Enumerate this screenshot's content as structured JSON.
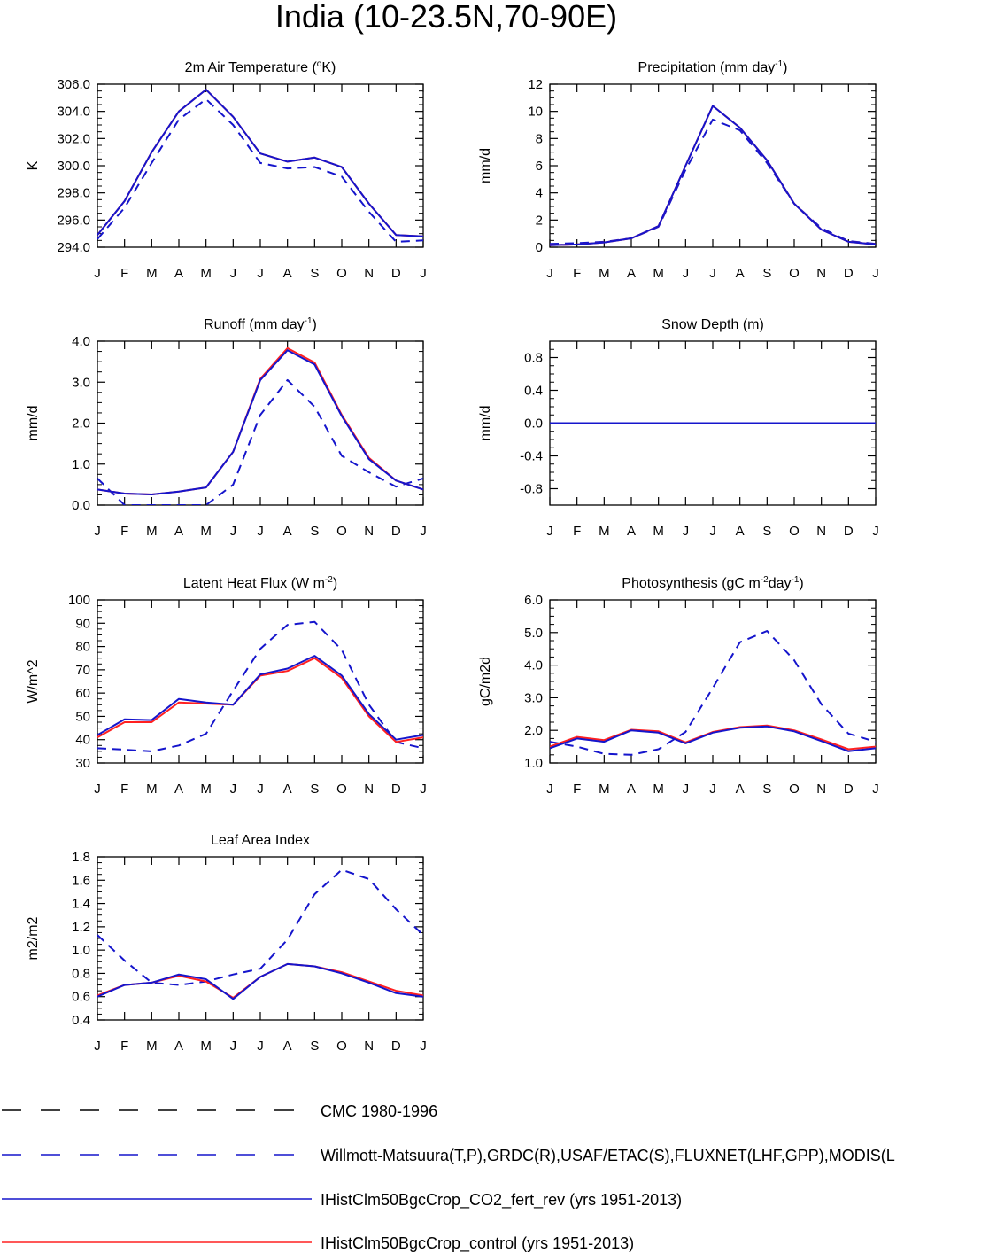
{
  "figure": {
    "title": "India (10-23.5N,70-90E)"
  },
  "month_labels": [
    "J",
    "F",
    "M",
    "A",
    "M",
    "J",
    "J",
    "A",
    "S",
    "O",
    "N",
    "D",
    "J"
  ],
  "colors": {
    "blue": "#1515cc",
    "red": "#ff2020",
    "black": "#000000"
  },
  "chart_data": [
    {
      "type": "line",
      "title_main": "2m Air Temperature (",
      "title_sup": "o",
      "title_end": "K)",
      "ylabel": "K",
      "ylim": [
        294,
        306
      ],
      "yticks": [
        294,
        296,
        298,
        300,
        302,
        304,
        306
      ],
      "ytick_labels": [
        "294.0",
        "296.0",
        "298.0",
        "300.0",
        "302.0",
        "304.0",
        "306.0"
      ],
      "x": [
        "J",
        "F",
        "M",
        "A",
        "M",
        "J",
        "J",
        "A",
        "S",
        "O",
        "N",
        "D",
        "J"
      ],
      "series": [
        {
          "style": "obs",
          "values": [
            294.6,
            296.9,
            300.2,
            303.4,
            304.9,
            303.0,
            300.2,
            299.8,
            299.9,
            299.2,
            296.6,
            294.4,
            294.5
          ]
        },
        {
          "style": "red",
          "values": [
            294.9,
            297.4,
            301.0,
            304.0,
            305.6,
            303.6,
            300.9,
            300.3,
            300.6,
            299.9,
            297.2,
            294.9,
            294.8
          ]
        },
        {
          "style": "blue",
          "values": [
            294.9,
            297.4,
            301.0,
            304.0,
            305.6,
            303.6,
            300.9,
            300.3,
            300.6,
            299.9,
            297.2,
            294.9,
            294.8
          ]
        }
      ]
    },
    {
      "type": "line",
      "title_main": "Precipitation (mm day",
      "title_sup": "-1",
      "title_end": ")",
      "ylabel": "mm/d",
      "ylim": [
        0,
        12
      ],
      "yticks": [
        0,
        2,
        4,
        6,
        8,
        10,
        12
      ],
      "ytick_labels": [
        "0",
        "2",
        "4",
        "6",
        "8",
        "10",
        "12"
      ],
      "x": [
        "J",
        "F",
        "M",
        "A",
        "M",
        "J",
        "J",
        "A",
        "S",
        "O",
        "N",
        "D",
        "J"
      ],
      "series": [
        {
          "style": "obs",
          "values": [
            0.25,
            0.3,
            0.4,
            0.65,
            1.5,
            5.7,
            9.4,
            8.6,
            6.2,
            3.2,
            1.4,
            0.45,
            0.25
          ]
        },
        {
          "style": "red",
          "values": [
            0.15,
            0.2,
            0.35,
            0.65,
            1.55,
            6.0,
            10.4,
            8.8,
            6.4,
            3.2,
            1.3,
            0.4,
            0.2
          ]
        },
        {
          "style": "blue",
          "values": [
            0.15,
            0.2,
            0.35,
            0.65,
            1.55,
            6.0,
            10.4,
            8.8,
            6.4,
            3.2,
            1.3,
            0.4,
            0.2
          ]
        }
      ]
    },
    {
      "type": "line",
      "title_main": "Runoff (mm day",
      "title_sup": "-1",
      "title_end": ")",
      "ylabel": "mm/d",
      "ylim": [
        0,
        4
      ],
      "yticks": [
        0,
        1,
        2,
        3,
        4
      ],
      "ytick_labels": [
        "0.0",
        "1.0",
        "2.0",
        "3.0",
        "4.0"
      ],
      "x": [
        "J",
        "F",
        "M",
        "A",
        "M",
        "J",
        "J",
        "A",
        "S",
        "O",
        "N",
        "D",
        "J"
      ],
      "series": [
        {
          "style": "obs",
          "values": [
            0.65,
            0.0,
            0.0,
            0.0,
            0.0,
            0.5,
            2.2,
            3.05,
            2.4,
            1.2,
            0.8,
            0.45,
            0.65
          ]
        },
        {
          "style": "red",
          "values": [
            0.38,
            0.28,
            0.26,
            0.33,
            0.43,
            1.3,
            3.08,
            3.83,
            3.48,
            2.2,
            1.15,
            0.6,
            0.38
          ]
        },
        {
          "style": "blue",
          "values": [
            0.38,
            0.28,
            0.26,
            0.33,
            0.43,
            1.3,
            3.05,
            3.78,
            3.43,
            2.17,
            1.12,
            0.6,
            0.38
          ]
        }
      ]
    },
    {
      "type": "line",
      "title_main": "Snow Depth (m)",
      "title_sup": "",
      "title_end": "",
      "ylabel": "mm/d",
      "ylim": [
        -1.0,
        1.0
      ],
      "yticks": [
        -0.8,
        -0.4,
        0.0,
        0.4,
        0.8
      ],
      "ytick_labels": [
        "-0.8",
        "-0.4",
        "0.0",
        "0.4",
        "0.8"
      ],
      "x": [
        "J",
        "F",
        "M",
        "A",
        "M",
        "J",
        "J",
        "A",
        "S",
        "O",
        "N",
        "D",
        "J"
      ],
      "series": [
        {
          "style": "obs",
          "values": [
            0,
            0,
            0,
            0,
            0,
            0,
            0,
            0,
            0,
            0,
            0,
            0,
            0
          ]
        },
        {
          "style": "red",
          "values": [
            0,
            0,
            0,
            0,
            0,
            0,
            0,
            0,
            0,
            0,
            0,
            0,
            0
          ]
        },
        {
          "style": "blue",
          "values": [
            0,
            0,
            0,
            0,
            0,
            0,
            0,
            0,
            0,
            0,
            0,
            0,
            0
          ]
        }
      ]
    },
    {
      "type": "line",
      "title_main": "Latent Heat Flux (W m",
      "title_sup": "-2",
      "title_end": ")",
      "ylabel": "W/m^2",
      "ylim": [
        30,
        100
      ],
      "yticks": [
        30,
        40,
        50,
        60,
        70,
        80,
        90,
        100
      ],
      "ytick_labels": [
        "30",
        "40",
        "50",
        "60",
        "70",
        "80",
        "90",
        "100"
      ],
      "x": [
        "J",
        "F",
        "M",
        "A",
        "M",
        "J",
        "J",
        "A",
        "S",
        "O",
        "N",
        "D",
        "J"
      ],
      "series": [
        {
          "style": "obs",
          "values": [
            36.3,
            35.7,
            35.0,
            37.5,
            42.5,
            61.0,
            79.0,
            89.3,
            90.6,
            78.5,
            55.0,
            39.0,
            36.3
          ]
        },
        {
          "style": "red",
          "values": [
            41.0,
            47.5,
            47.5,
            56.0,
            55.5,
            55.0,
            67.5,
            69.5,
            75.0,
            66.5,
            50.0,
            39.0,
            41.0
          ]
        },
        {
          "style": "blue",
          "values": [
            42.0,
            48.7,
            48.4,
            57.5,
            56.0,
            55.0,
            68.0,
            70.5,
            76.0,
            67.5,
            51.0,
            40.0,
            42.0
          ]
        }
      ]
    },
    {
      "type": "line",
      "title_main": "Photosynthesis (gC m",
      "title_sup": "-2",
      "title_end": "day",
      "title_sup2": "-1",
      "title_end2": ")",
      "ylabel": "gC/m2d",
      "ylim": [
        1.0,
        6.0
      ],
      "yticks": [
        1,
        2,
        3,
        4,
        5,
        6
      ],
      "ytick_labels": [
        "1.0",
        "2.0",
        "3.0",
        "4.0",
        "5.0",
        "6.0"
      ],
      "x": [
        "J",
        "F",
        "M",
        "A",
        "M",
        "J",
        "J",
        "A",
        "S",
        "O",
        "N",
        "D",
        "J"
      ],
      "series": [
        {
          "style": "obs",
          "values": [
            1.65,
            1.5,
            1.28,
            1.25,
            1.42,
            1.95,
            3.3,
            4.7,
            5.05,
            4.15,
            2.8,
            1.9,
            1.65
          ]
        },
        {
          "style": "red",
          "values": [
            1.5,
            1.8,
            1.7,
            2.02,
            1.97,
            1.63,
            1.95,
            2.1,
            2.15,
            2.0,
            1.72,
            1.42,
            1.5
          ]
        },
        {
          "style": "blue",
          "values": [
            1.45,
            1.75,
            1.65,
            2.0,
            1.93,
            1.6,
            1.93,
            2.08,
            2.12,
            1.97,
            1.67,
            1.36,
            1.45
          ]
        }
      ]
    },
    {
      "type": "line",
      "title_main": "Leaf Area Index",
      "title_sup": "",
      "title_end": "",
      "ylabel": "m2/m2",
      "ylim": [
        0.4,
        1.8
      ],
      "yticks": [
        0.4,
        0.6,
        0.8,
        1.0,
        1.2,
        1.4,
        1.6,
        1.8
      ],
      "ytick_labels": [
        "0.4",
        "0.6",
        "0.8",
        "1.0",
        "1.2",
        "1.4",
        "1.6",
        "1.8"
      ],
      "x": [
        "J",
        "F",
        "M",
        "A",
        "M",
        "J",
        "J",
        "A",
        "S",
        "O",
        "N",
        "D",
        "J"
      ],
      "series": [
        {
          "style": "obs",
          "values": [
            1.13,
            0.91,
            0.72,
            0.7,
            0.73,
            0.79,
            0.84,
            1.09,
            1.48,
            1.69,
            1.61,
            1.35,
            1.13
          ]
        },
        {
          "style": "red",
          "values": [
            0.61,
            0.7,
            0.72,
            0.78,
            0.73,
            0.59,
            0.77,
            0.88,
            0.86,
            0.81,
            0.73,
            0.65,
            0.61
          ]
        },
        {
          "style": "blue",
          "values": [
            0.6,
            0.7,
            0.72,
            0.79,
            0.75,
            0.58,
            0.77,
            0.88,
            0.86,
            0.8,
            0.72,
            0.63,
            0.6
          ]
        }
      ]
    }
  ],
  "legend": [
    {
      "label": "CMC 1980-1996",
      "color": "#000000",
      "dashed": true
    },
    {
      "label": "Willmott-Matsuura(T,P),GRDC(R),USAF/ETAC(S),FLUXNET(LHF,GPP),MODIS(L",
      "color": "#1515cc",
      "dashed": true
    },
    {
      "label": "IHistClm50BgcCrop_CO2_fert_rev (yrs 1951-2013)",
      "color": "#1515cc",
      "dashed": false
    },
    {
      "label": "IHistClm50BgcCrop_control (yrs 1951-2013)",
      "color": "#ff2020",
      "dashed": false
    }
  ]
}
